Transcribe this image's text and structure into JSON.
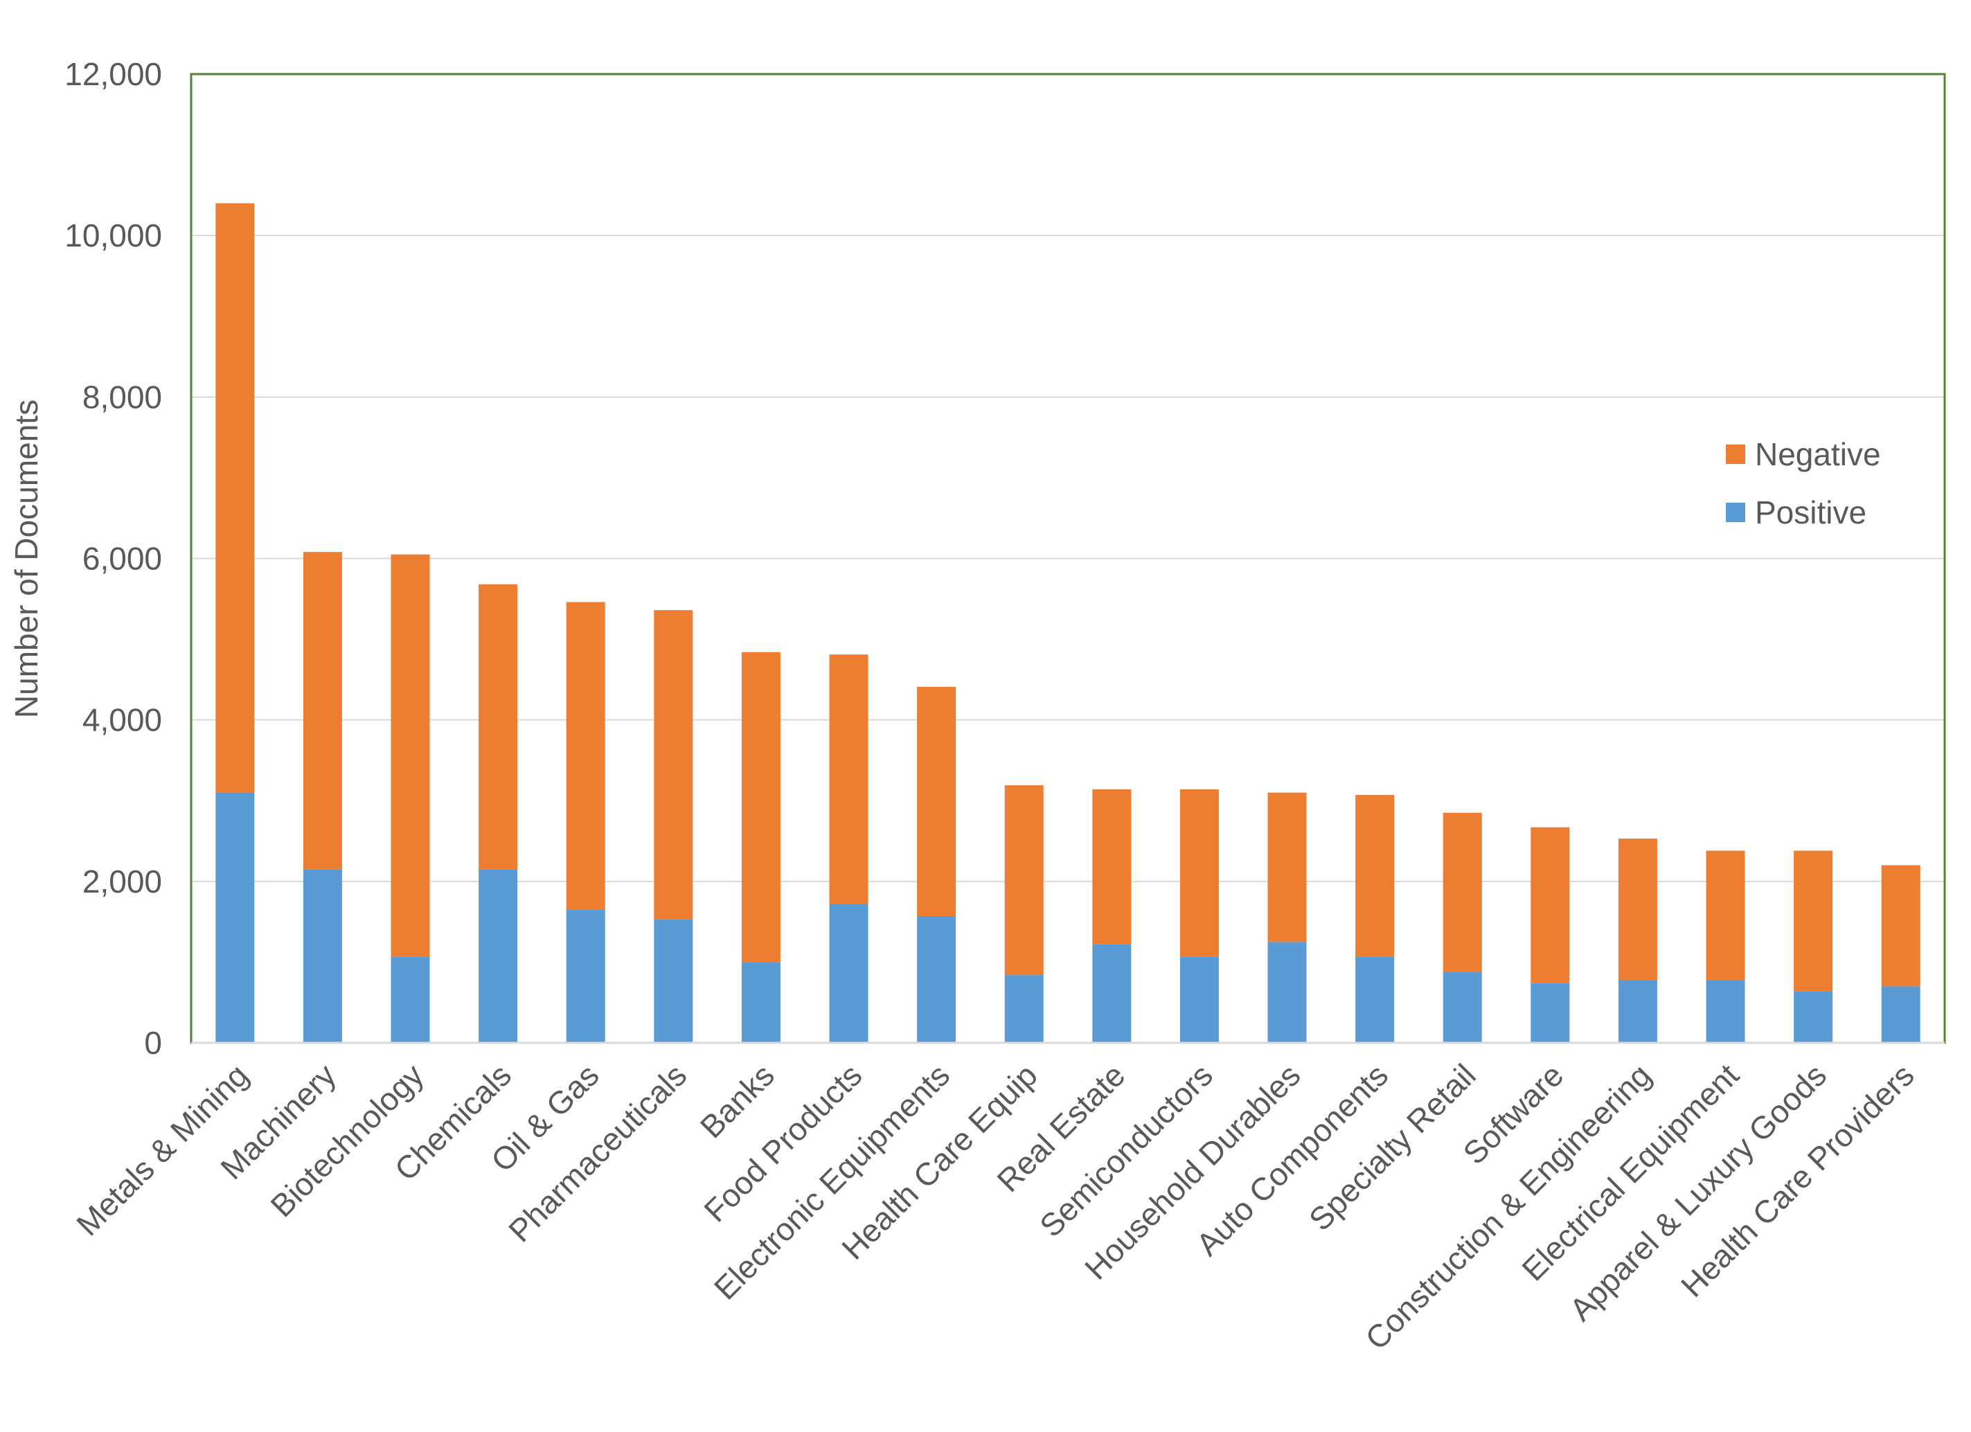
{
  "chart_data": {
    "type": "bar",
    "stacked": true,
    "title": "",
    "xlabel": "",
    "ylabel": "Number of Documents",
    "ylim": [
      0,
      12000
    ],
    "yticks": [
      0,
      2000,
      4000,
      6000,
      8000,
      10000,
      12000
    ],
    "ytick_labels": [
      "0",
      "2,000",
      "4,000",
      "6,000",
      "8,000",
      "10,000",
      "12,000"
    ],
    "grid": true,
    "legend_position": "right",
    "categories": [
      "Metals & Mining",
      "Machinery",
      "Biotechnology",
      "Chemicals",
      "Oil & Gas",
      "Pharmaceuticals",
      "Banks",
      "Food Products",
      "Electronic Equipments",
      "Health Care Equip",
      "Real Estate",
      "Semiconductors",
      "Household Durables",
      "Auto Components",
      "Specialty Retail",
      "Software",
      "Construction & Engineering",
      "Electrical Equipment",
      "Apparel & Luxury Goods",
      "Health Care Providers"
    ],
    "series": [
      {
        "name": "Positive",
        "color": "#5B9BD5",
        "values": [
          3100,
          2150,
          1070,
          2150,
          1650,
          1530,
          1000,
          1720,
          1570,
          840,
          1220,
          1070,
          1250,
          1070,
          880,
          740,
          780,
          780,
          640,
          700
        ]
      },
      {
        "name": "Negative",
        "color": "#ED7D31",
        "values": [
          7300,
          3930,
          4980,
          3530,
          3810,
          3830,
          3840,
          3090,
          2840,
          2350,
          1920,
          2070,
          1850,
          2000,
          1970,
          1930,
          1750,
          1600,
          1740,
          1500
        ]
      }
    ],
    "legend_order": [
      "Negative",
      "Positive"
    ]
  },
  "colors": {
    "plot_border": "#548235",
    "gridline": "#D9D9D9",
    "text": "#595959"
  }
}
